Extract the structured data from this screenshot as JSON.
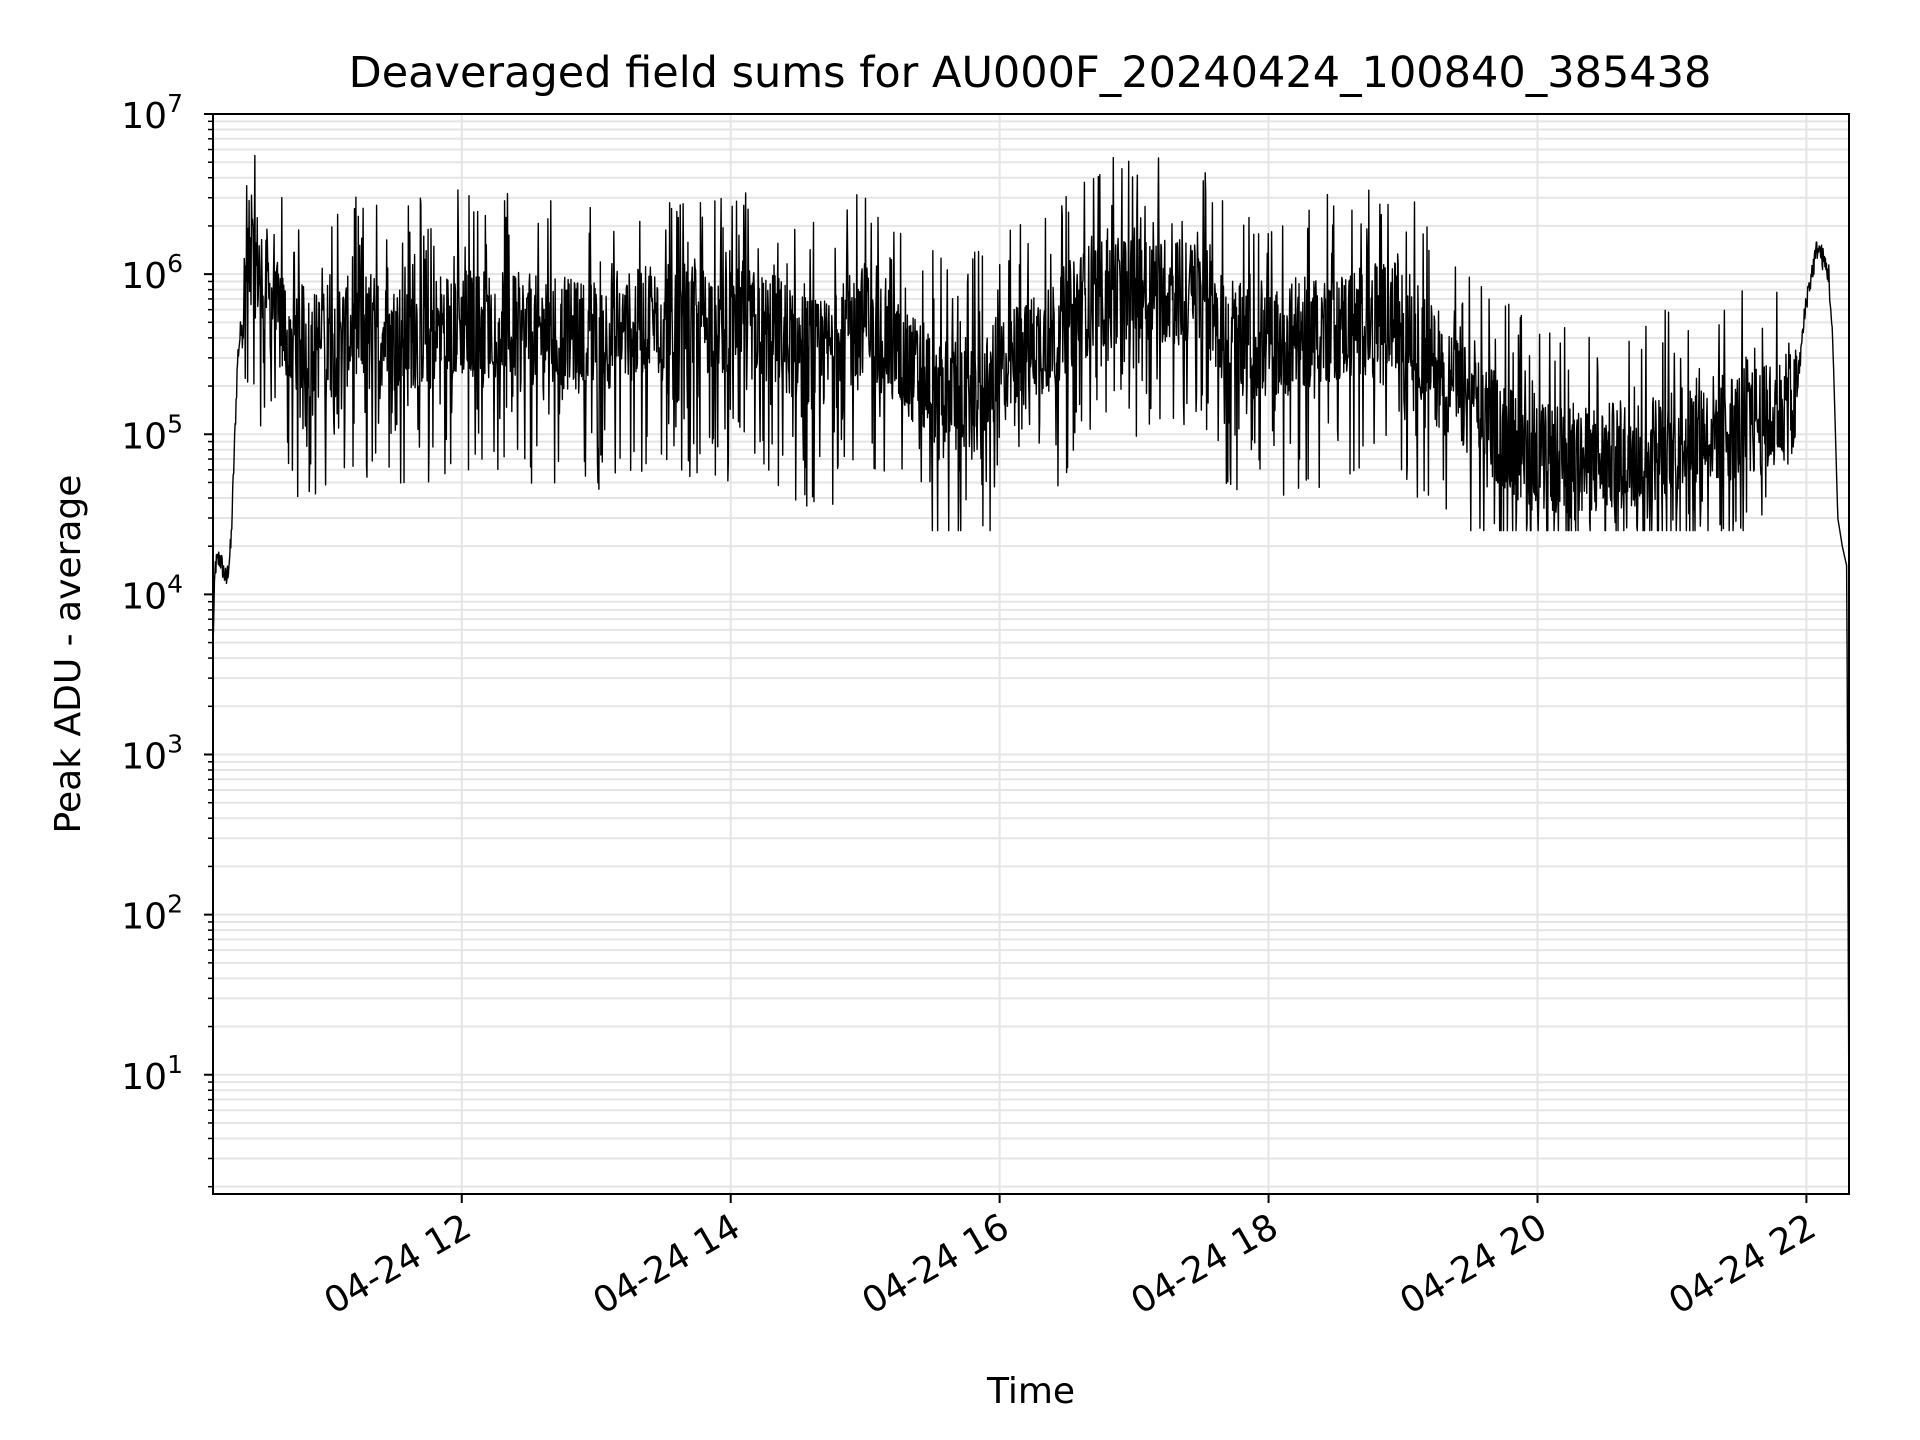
{
  "chart_data": {
    "type": "line",
    "title": "Deaveraged field sums for AU000F_20240424_100840_385438",
    "xlabel": "Time",
    "ylabel": "Peak ADU - average",
    "yscale": "log",
    "ylim": [
      1.8,
      10000000
    ],
    "xlim": [
      "2024-04-24 10:09",
      "2024-04-24 22:19"
    ],
    "grid": true,
    "colors": {
      "line": "#000000",
      "grid": "#e5e5e5",
      "axes": "#000000",
      "background": "#ffffff"
    },
    "x_ticks": [
      {
        "value": "2024-04-24 12:00",
        "label": "04-24 12"
      },
      {
        "value": "2024-04-24 14:00",
        "label": "04-24 14"
      },
      {
        "value": "2024-04-24 16:00",
        "label": "04-24 16"
      },
      {
        "value": "2024-04-24 18:00",
        "label": "04-24 18"
      },
      {
        "value": "2024-04-24 20:00",
        "label": "04-24 20"
      },
      {
        "value": "2024-04-24 22:00",
        "label": "04-24 22"
      }
    ],
    "y_ticks": [
      {
        "value": 10,
        "base": "10",
        "exp": "1"
      },
      {
        "value": 100,
        "base": "10",
        "exp": "2"
      },
      {
        "value": 1000,
        "base": "10",
        "exp": "3"
      },
      {
        "value": 10000,
        "base": "10",
        "exp": "4"
      },
      {
        "value": 100000,
        "base": "10",
        "exp": "5"
      },
      {
        "value": 1000000,
        "base": "10",
        "exp": "6"
      },
      {
        "value": 10000000,
        "base": "10",
        "exp": "7"
      }
    ],
    "series": [
      {
        "x": [
          "2024-04-24 10:09",
          "2024-04-24 10:10",
          "2024-04-24 10:12",
          "2024-04-24 10:15",
          "2024-04-24 10:17",
          "2024-04-24 10:20",
          "2024-04-24 10:25",
          "2024-04-24 10:30",
          "2024-04-24 10:35",
          "2024-04-24 10:45",
          "2024-04-24 11:00",
          "2024-04-24 11:15",
          "2024-04-24 11:30",
          "2024-04-24 11:45",
          "2024-04-24 12:00",
          "2024-04-24 12:30",
          "2024-04-24 13:00",
          "2024-04-24 13:30",
          "2024-04-24 14:00",
          "2024-04-24 14:20",
          "2024-04-24 14:30",
          "2024-04-24 14:40",
          "2024-04-24 14:50",
          "2024-04-24 15:00",
          "2024-04-24 15:15",
          "2024-04-24 15:30",
          "2024-04-24 15:45",
          "2024-04-24 16:00",
          "2024-04-24 16:20",
          "2024-04-24 16:40",
          "2024-04-24 17:00",
          "2024-04-24 17:15",
          "2024-04-24 17:30",
          "2024-04-24 17:45",
          "2024-04-24 18:00",
          "2024-04-24 18:20",
          "2024-04-24 18:40",
          "2024-04-24 19:00",
          "2024-04-24 19:15",
          "2024-04-24 19:30",
          "2024-04-24 19:45",
          "2024-04-24 20:00",
          "2024-04-24 20:20",
          "2024-04-24 20:40",
          "2024-04-24 21:00",
          "2024-04-24 21:20",
          "2024-04-24 21:40",
          "2024-04-24 21:55",
          "2024-04-24 22:00",
          "2024-04-24 22:05",
          "2024-04-24 22:10",
          "2024-04-24 22:12",
          "2024-04-24 22:14",
          "2024-04-24 22:16",
          "2024-04-24 22:18",
          "2024-04-24 22:19"
        ],
        "y": [
          5000,
          15000,
          17000,
          12000,
          20000,
          300000,
          1300000,
          1100000,
          600000,
          400000,
          350000,
          500000,
          400000,
          450000,
          500000,
          450000,
          400000,
          550000,
          500000,
          450000,
          350000,
          300000,
          400000,
          550000,
          300000,
          200000,
          180000,
          250000,
          400000,
          700000,
          900000,
          800000,
          700000,
          400000,
          350000,
          450000,
          500000,
          550000,
          250000,
          150000,
          100000,
          70000,
          65000,
          75000,
          90000,
          110000,
          120000,
          150000,
          700000,
          1500000,
          1000000,
          300000,
          30000,
          20000,
          15000,
          4
        ]
      }
    ],
    "series_note": "The dense noise around the envelope (spikes between ~3e4 and ~5e6) is generated in the drawing script around these envelope points."
  }
}
